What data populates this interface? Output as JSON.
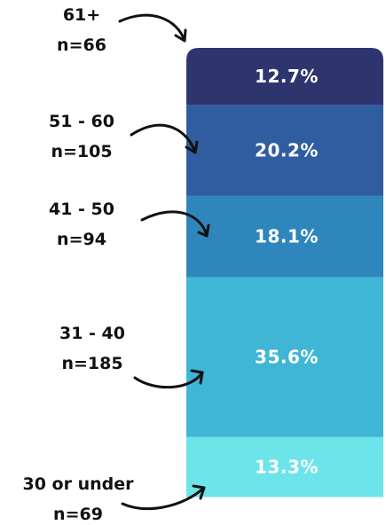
{
  "chart_data": {
    "type": "bar",
    "stacked": true,
    "orientation": "vertical",
    "segments": [
      {
        "category": "61+",
        "n_label": "n=66",
        "value": 12.7,
        "value_label": "12.7%",
        "color": "#2e356e"
      },
      {
        "category": "51 - 60",
        "n_label": "n=105",
        "value": 20.2,
        "value_label": "20.2%",
        "color": "#2f5d9f"
      },
      {
        "category": "41 - 50",
        "n_label": "n=94",
        "value": 18.1,
        "value_label": "18.1%",
        "color": "#2f86bd"
      },
      {
        "category": "31 - 40",
        "n_label": "n=185",
        "value": 35.6,
        "value_label": "35.6%",
        "color": "#3fb6d6"
      },
      {
        "category": "30 or under",
        "n_label": "n=69",
        "value": 13.3,
        "value_label": "13.3%",
        "color": "#6ce4ea"
      }
    ]
  }
}
